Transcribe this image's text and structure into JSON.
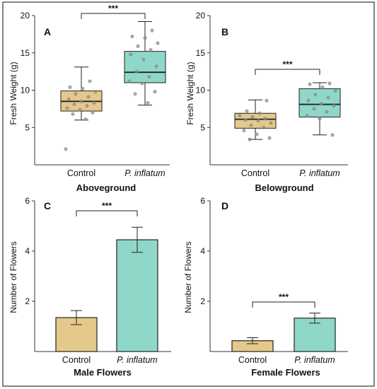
{
  "colors": {
    "control": "#e5c98a",
    "treatment": "#8fd8c9",
    "outline": "#222222",
    "point": "#8a8a8a",
    "frame": "#333333"
  },
  "chart_data": [
    {
      "panel": "A",
      "type": "box",
      "title": "Aboveground",
      "ylabel": "Fresh Weight (g)",
      "ylim": [
        0,
        20
      ],
      "yticks": [
        5,
        10,
        15,
        20
      ],
      "significance": "***",
      "categories": [
        "Control",
        "P. inflatum"
      ],
      "boxes": [
        {
          "min": 6.0,
          "q1": 7.2,
          "median": 8.5,
          "q3": 9.9,
          "max": 13.1
        },
        {
          "min": 8.0,
          "q1": 11.0,
          "median": 12.4,
          "q3": 15.2,
          "max": 19.2
        }
      ],
      "points": [
        [
          2.1,
          6.1,
          6.8,
          7.0,
          7.4,
          7.6,
          7.9,
          8.1,
          8.3,
          8.5,
          8.8,
          9.1,
          9.5,
          9.8,
          10.2,
          10.4,
          11.2
        ],
        [
          8.3,
          9.5,
          9.8,
          10.9,
          11.2,
          11.8,
          12.5,
          13.2,
          14.1,
          14.8,
          15.4,
          15.9,
          16.3,
          17.0,
          17.2,
          18.0
        ]
      ]
    },
    {
      "panel": "B",
      "type": "box",
      "title": "Belowground",
      "ylabel": "Fresh Weight (g)",
      "ylim": [
        0,
        20
      ],
      "yticks": [
        5,
        10,
        15,
        20
      ],
      "significance": "***",
      "categories": [
        "Control",
        "P. inflatum"
      ],
      "boxes": [
        {
          "min": 3.4,
          "q1": 4.9,
          "median": 6.1,
          "q3": 6.9,
          "max": 8.7
        },
        {
          "min": 4.0,
          "q1": 6.4,
          "median": 8.1,
          "q3": 10.2,
          "max": 11.0
        }
      ],
      "points": [
        [
          3.4,
          3.6,
          4.1,
          4.6,
          5.0,
          5.3,
          5.6,
          5.9,
          6.0,
          6.2,
          6.4,
          6.6,
          6.9,
          7.2,
          8.6
        ],
        [
          4.0,
          6.2,
          6.6,
          7.1,
          7.5,
          7.9,
          8.2,
          8.6,
          9.0,
          9.4,
          9.9,
          10.4,
          10.8,
          10.9
        ]
      ]
    },
    {
      "panel": "C",
      "type": "bar",
      "title": "Male Flowers",
      "ylabel": "Number of Flowers",
      "ylim": [
        0,
        6
      ],
      "yticks": [
        2,
        4,
        6
      ],
      "significance": "***",
      "categories": [
        "Control",
        "P. inflatum"
      ],
      "values": [
        1.35,
        4.45
      ],
      "errors": [
        0.28,
        0.5
      ]
    },
    {
      "panel": "D",
      "type": "bar",
      "title": "Female Flowers",
      "ylabel": "Number of Flowers",
      "ylim": [
        0,
        6
      ],
      "yticks": [
        2,
        4,
        6
      ],
      "significance": "***",
      "categories": [
        "Control",
        "P. inflatum"
      ],
      "values": [
        0.43,
        1.33
      ],
      "errors": [
        0.12,
        0.2
      ]
    }
  ]
}
